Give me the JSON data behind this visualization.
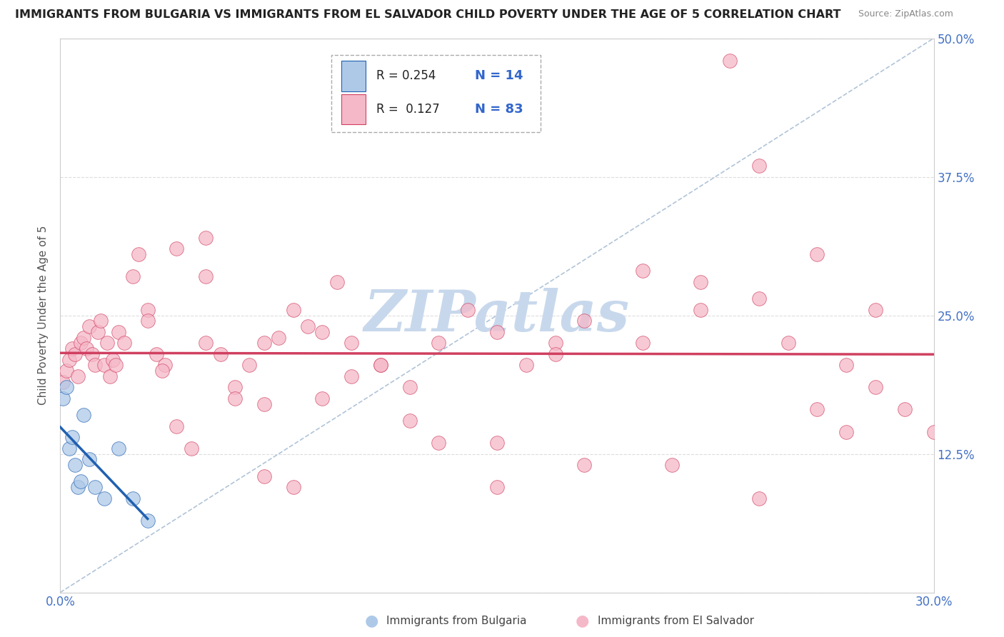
{
  "title": "IMMIGRANTS FROM BULGARIA VS IMMIGRANTS FROM EL SALVADOR CHILD POVERTY UNDER THE AGE OF 5 CORRELATION CHART",
  "source": "Source: ZipAtlas.com",
  "ylabel": "Child Poverty Under the Age of 5",
  "xmin": 0.0,
  "xmax": 0.3,
  "ymin": 0.0,
  "ymax": 0.5,
  "legend_r_bulgaria": "R = 0.254",
  "legend_n_bulgaria": "N = 14",
  "legend_r_elsalvador": "R =  0.127",
  "legend_n_elsalvador": "N = 83",
  "color_bulgaria": "#aec9e8",
  "color_elsalvador": "#f5b8c8",
  "trendline_color_bulgaria": "#2060b0",
  "trendline_color_elsalvador": "#d04060",
  "diagonal_color": "#b0c4d8",
  "watermark_text": "ZIPatlas",
  "watermark_color": "#c8d8ec",
  "background_color": "#ffffff",
  "bulgaria_x": [
    0.001,
    0.002,
    0.003,
    0.004,
    0.005,
    0.006,
    0.007,
    0.008,
    0.01,
    0.012,
    0.015,
    0.02,
    0.025,
    0.03
  ],
  "bulgaria_y": [
    0.175,
    0.185,
    0.13,
    0.14,
    0.115,
    0.095,
    0.1,
    0.16,
    0.12,
    0.095,
    0.085,
    0.13,
    0.085,
    0.065
  ],
  "elsalvador_x": [
    0.001,
    0.002,
    0.003,
    0.004,
    0.005,
    0.006,
    0.007,
    0.008,
    0.009,
    0.01,
    0.011,
    0.012,
    0.013,
    0.014,
    0.015,
    0.016,
    0.017,
    0.018,
    0.019,
    0.02,
    0.022,
    0.025,
    0.027,
    0.03,
    0.033,
    0.036,
    0.04,
    0.045,
    0.05,
    0.055,
    0.06,
    0.065,
    0.07,
    0.075,
    0.08,
    0.085,
    0.09,
    0.095,
    0.1,
    0.11,
    0.12,
    0.13,
    0.14,
    0.15,
    0.16,
    0.17,
    0.18,
    0.2,
    0.22,
    0.23,
    0.24,
    0.25,
    0.26,
    0.27,
    0.28,
    0.29,
    0.03,
    0.04,
    0.05,
    0.06,
    0.07,
    0.08,
    0.1,
    0.11,
    0.13,
    0.15,
    0.17,
    0.2,
    0.22,
    0.24,
    0.26,
    0.28,
    0.05,
    0.07,
    0.09,
    0.12,
    0.15,
    0.18,
    0.21,
    0.24,
    0.27,
    0.3,
    0.035
  ],
  "elsalvador_y": [
    0.19,
    0.2,
    0.21,
    0.22,
    0.215,
    0.195,
    0.225,
    0.23,
    0.22,
    0.24,
    0.215,
    0.205,
    0.235,
    0.245,
    0.205,
    0.225,
    0.195,
    0.21,
    0.205,
    0.235,
    0.225,
    0.285,
    0.305,
    0.255,
    0.215,
    0.205,
    0.15,
    0.13,
    0.225,
    0.215,
    0.185,
    0.205,
    0.225,
    0.23,
    0.255,
    0.24,
    0.235,
    0.28,
    0.225,
    0.205,
    0.185,
    0.225,
    0.255,
    0.235,
    0.205,
    0.225,
    0.245,
    0.225,
    0.255,
    0.48,
    0.385,
    0.225,
    0.305,
    0.205,
    0.185,
    0.165,
    0.245,
    0.31,
    0.285,
    0.175,
    0.105,
    0.095,
    0.195,
    0.205,
    0.135,
    0.135,
    0.215,
    0.29,
    0.28,
    0.265,
    0.165,
    0.255,
    0.32,
    0.17,
    0.175,
    0.155,
    0.095,
    0.115,
    0.115,
    0.085,
    0.145,
    0.145,
    0.2
  ]
}
